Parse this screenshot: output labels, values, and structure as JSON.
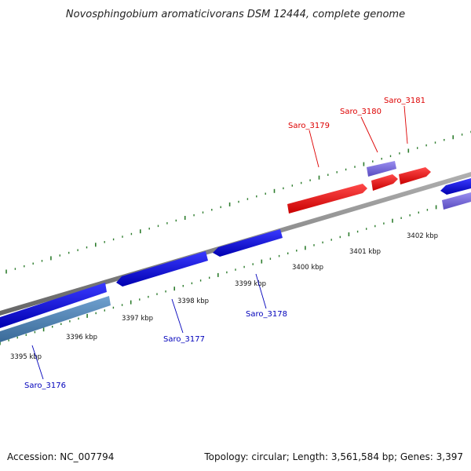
{
  "title": "Novosphingobium aromaticivorans DSM 12444, complete genome",
  "footer": {
    "accession": "Accession: NC_007794",
    "summary": "Topology: circular; Length: 3,561,584 bp; Genes: 3,397"
  },
  "ticks": [
    "3395 kbp",
    "3396 kbp",
    "3397 kbp",
    "3398 kbp",
    "3399 kbp",
    "3400 kbp",
    "3401 kbp",
    "3402 kbp"
  ],
  "genes": [
    {
      "label": "Saro_3176",
      "color": "#0000bb"
    },
    {
      "label": "Saro_3177",
      "color": "#0000bb"
    },
    {
      "label": "Saro_3178",
      "color": "#0000bb"
    },
    {
      "label": "Saro_3179",
      "color": "#dd0000"
    },
    {
      "label": "Saro_3180",
      "color": "#dd0000"
    },
    {
      "label": "Saro_3181",
      "color": "#dd0000"
    }
  ],
  "colors": {
    "forward_cds": "#ee0000",
    "reverse_cds": "#0000ee",
    "rna": "#7766cc",
    "steelblue_feature": "#4a7fb0",
    "backbone": "#8a8a8a",
    "ticks": "#2e7d2e"
  }
}
